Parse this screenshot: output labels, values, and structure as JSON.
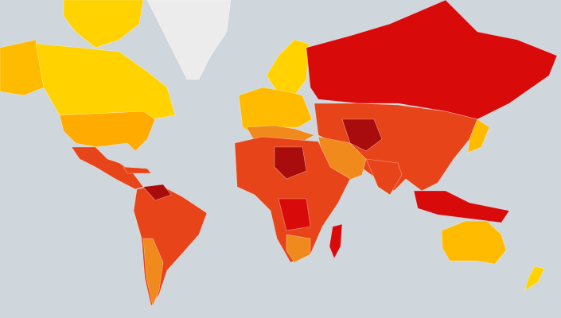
{
  "map": {
    "ocean": "#cfd6dc",
    "colors": [
      "#ffd200",
      "#ffbb00",
      "#ffab00",
      "#f08a1c",
      "#e8441a",
      "#d90a0a",
      "#a80c0c",
      "#ececec"
    ]
  }
}
